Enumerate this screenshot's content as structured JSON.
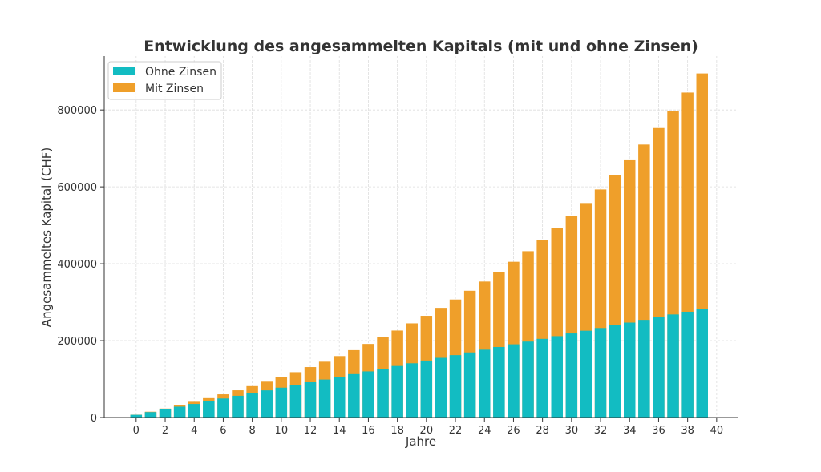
{
  "chart_data": {
    "type": "bar",
    "title": "Entwicklung des angesammelten Kapitals (mit und ohne Zinsen)",
    "xlabel": "Jahre",
    "ylabel": "Angesammeltes Kapital (CHF)",
    "x": [
      0,
      1,
      2,
      3,
      4,
      5,
      6,
      7,
      8,
      9,
      10,
      11,
      12,
      13,
      14,
      15,
      16,
      17,
      18,
      19,
      20,
      21,
      22,
      23,
      24,
      25,
      26,
      27,
      28,
      29,
      30,
      31,
      32,
      33,
      34,
      35,
      36,
      37,
      38,
      39
    ],
    "xticks": [
      0,
      2,
      4,
      6,
      8,
      10,
      12,
      14,
      16,
      18,
      20,
      22,
      24,
      26,
      28,
      30,
      32,
      34,
      36,
      38,
      40
    ],
    "yticks": [
      0,
      200000,
      400000,
      600000,
      800000
    ],
    "xlim": [
      -2.2,
      41.5
    ],
    "ylim": [
      0,
      940000
    ],
    "grid": true,
    "legend_position": "top-left",
    "series": [
      {
        "name": "Ohne Zinsen",
        "color": "#12bcc2",
        "values": [
          7056,
          14112,
          21168,
          28224,
          35280,
          42336,
          49392,
          56448,
          63504,
          70560,
          77616,
          84672,
          91728,
          98784,
          105840,
          112896,
          119952,
          127008,
          134064,
          141120,
          148176,
          155232,
          162288,
          169344,
          176400,
          183456,
          190512,
          197568,
          204624,
          211680,
          218736,
          225792,
          232848,
          239904,
          246960,
          254016,
          261072,
          268128,
          275184,
          282240
        ]
      },
      {
        "name": "Mit Zinsen",
        "color": "#ef9f2a",
        "values": [
          7409,
          15188,
          23356,
          31933,
          40938,
          50394,
          60322,
          70747,
          81694,
          93187,
          105255,
          117927,
          131232,
          145202,
          159871,
          175274,
          191446,
          208427,
          226257,
          244980,
          264637,
          285277,
          306950,
          329706,
          353601,
          378689,
          405034,
          432693,
          461735,
          492232,
          524253,
          557874,
          593177,
          630244,
          669165,
          710032,
          752942,
          798000,
          845307,
          894981
        ]
      }
    ]
  }
}
